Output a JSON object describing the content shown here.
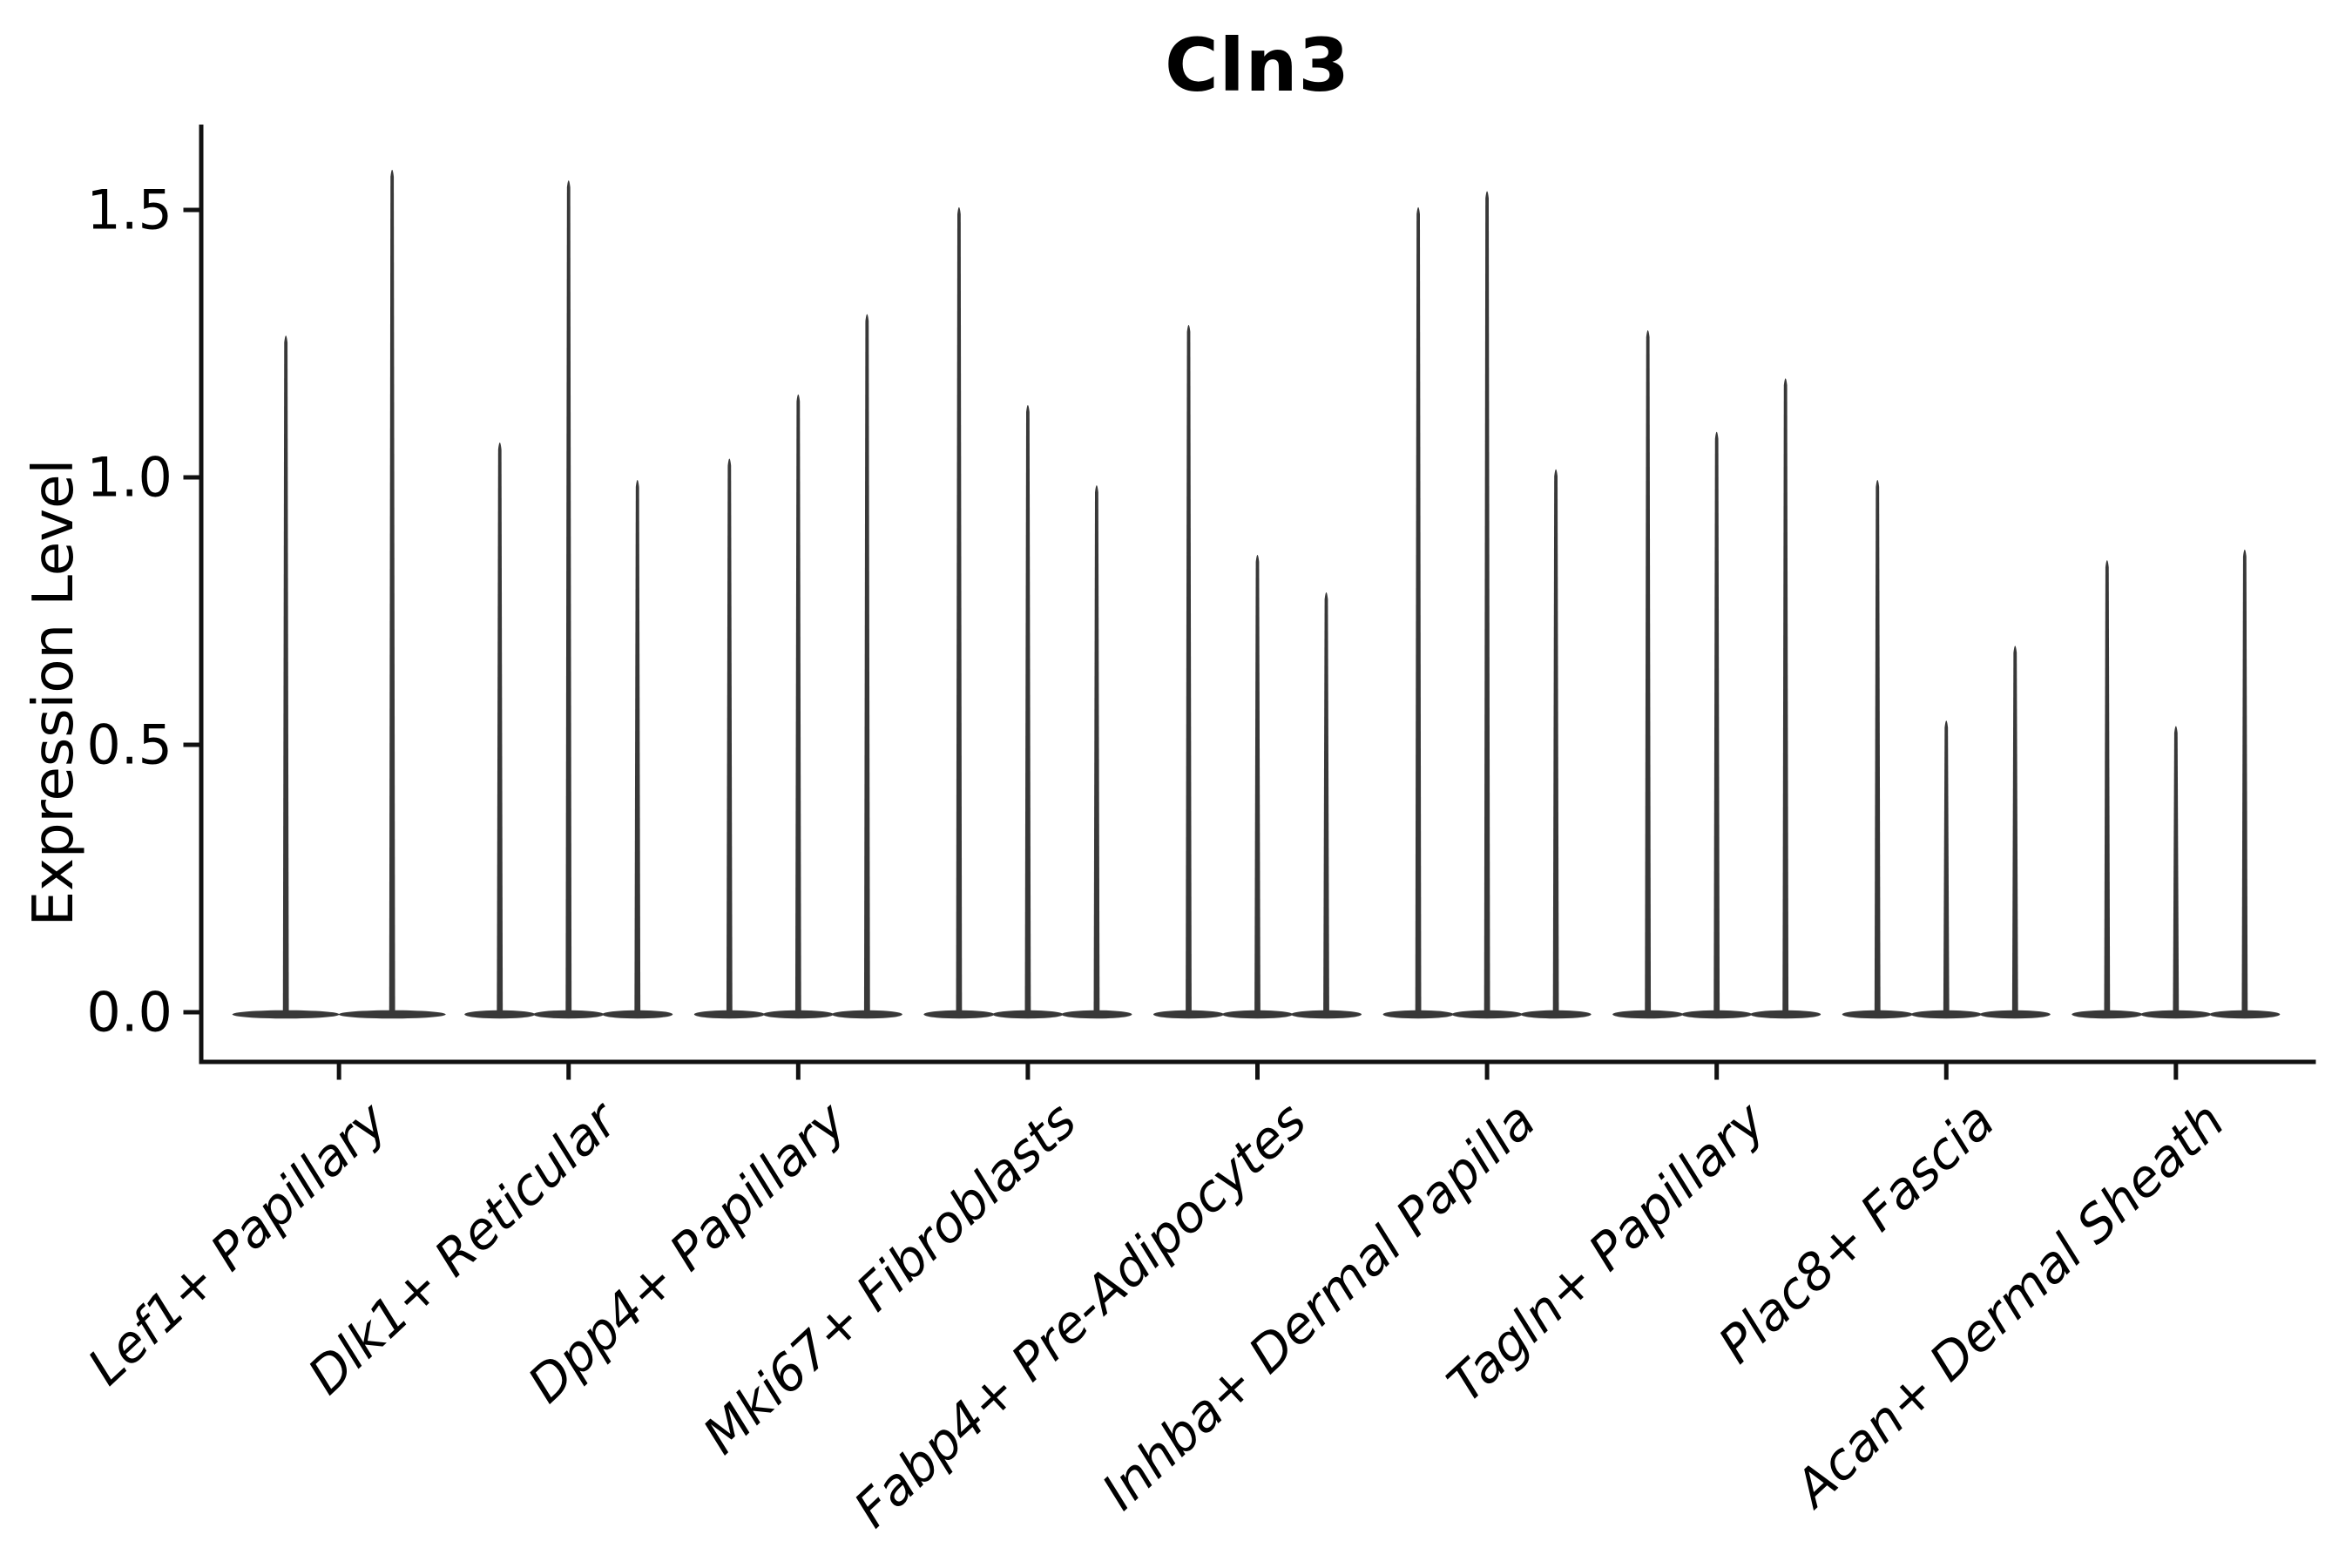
{
  "figure": {
    "background_color": "#ffffff",
    "text_color": "#000000"
  },
  "chart_data": {
    "type": "violin",
    "title": "Cln3",
    "xlabel": "",
    "ylabel": "Expression Level",
    "ylim": [
      -0.09,
      1.66
    ],
    "grid": false,
    "legend": "none",
    "y_tick_values": [
      0.0,
      0.5,
      1.0,
      1.5
    ],
    "y_tick_labels": [
      "0.0",
      "0.5",
      "1.0",
      "1.5"
    ],
    "categories": [
      "Lef1+ Papillary",
      "Dlk1+ Reticular",
      "Dpp4+ Papillary",
      "Mki67+ Fibroblasts",
      "Fabp4+ Pre-Adipocytes",
      "Inhba+ Dermal Papilla",
      "Tagln+ Papillary",
      "Plac8+ Fascia",
      "Acan+ Dermal Sheath"
    ],
    "description": "Needle-shaped violins (expression mostly 0 with thin spikes to the max value); each category contains 2-3 violins whose maxima are listed per category.",
    "violin_maxima": [
      [
        1.27,
        1.58
      ],
      [
        1.07,
        1.56,
        1.0
      ],
      [
        1.04,
        1.16,
        1.31
      ],
      [
        1.51,
        1.14,
        0.99
      ],
      [
        1.29,
        0.86,
        0.79
      ],
      [
        1.51,
        1.54,
        1.02
      ],
      [
        1.28,
        1.09,
        1.19
      ],
      [
        1.0,
        0.55,
        0.69
      ],
      [
        0.85,
        0.54,
        0.87
      ]
    ],
    "violin_color": "#383838",
    "axis_color": "#111111"
  }
}
